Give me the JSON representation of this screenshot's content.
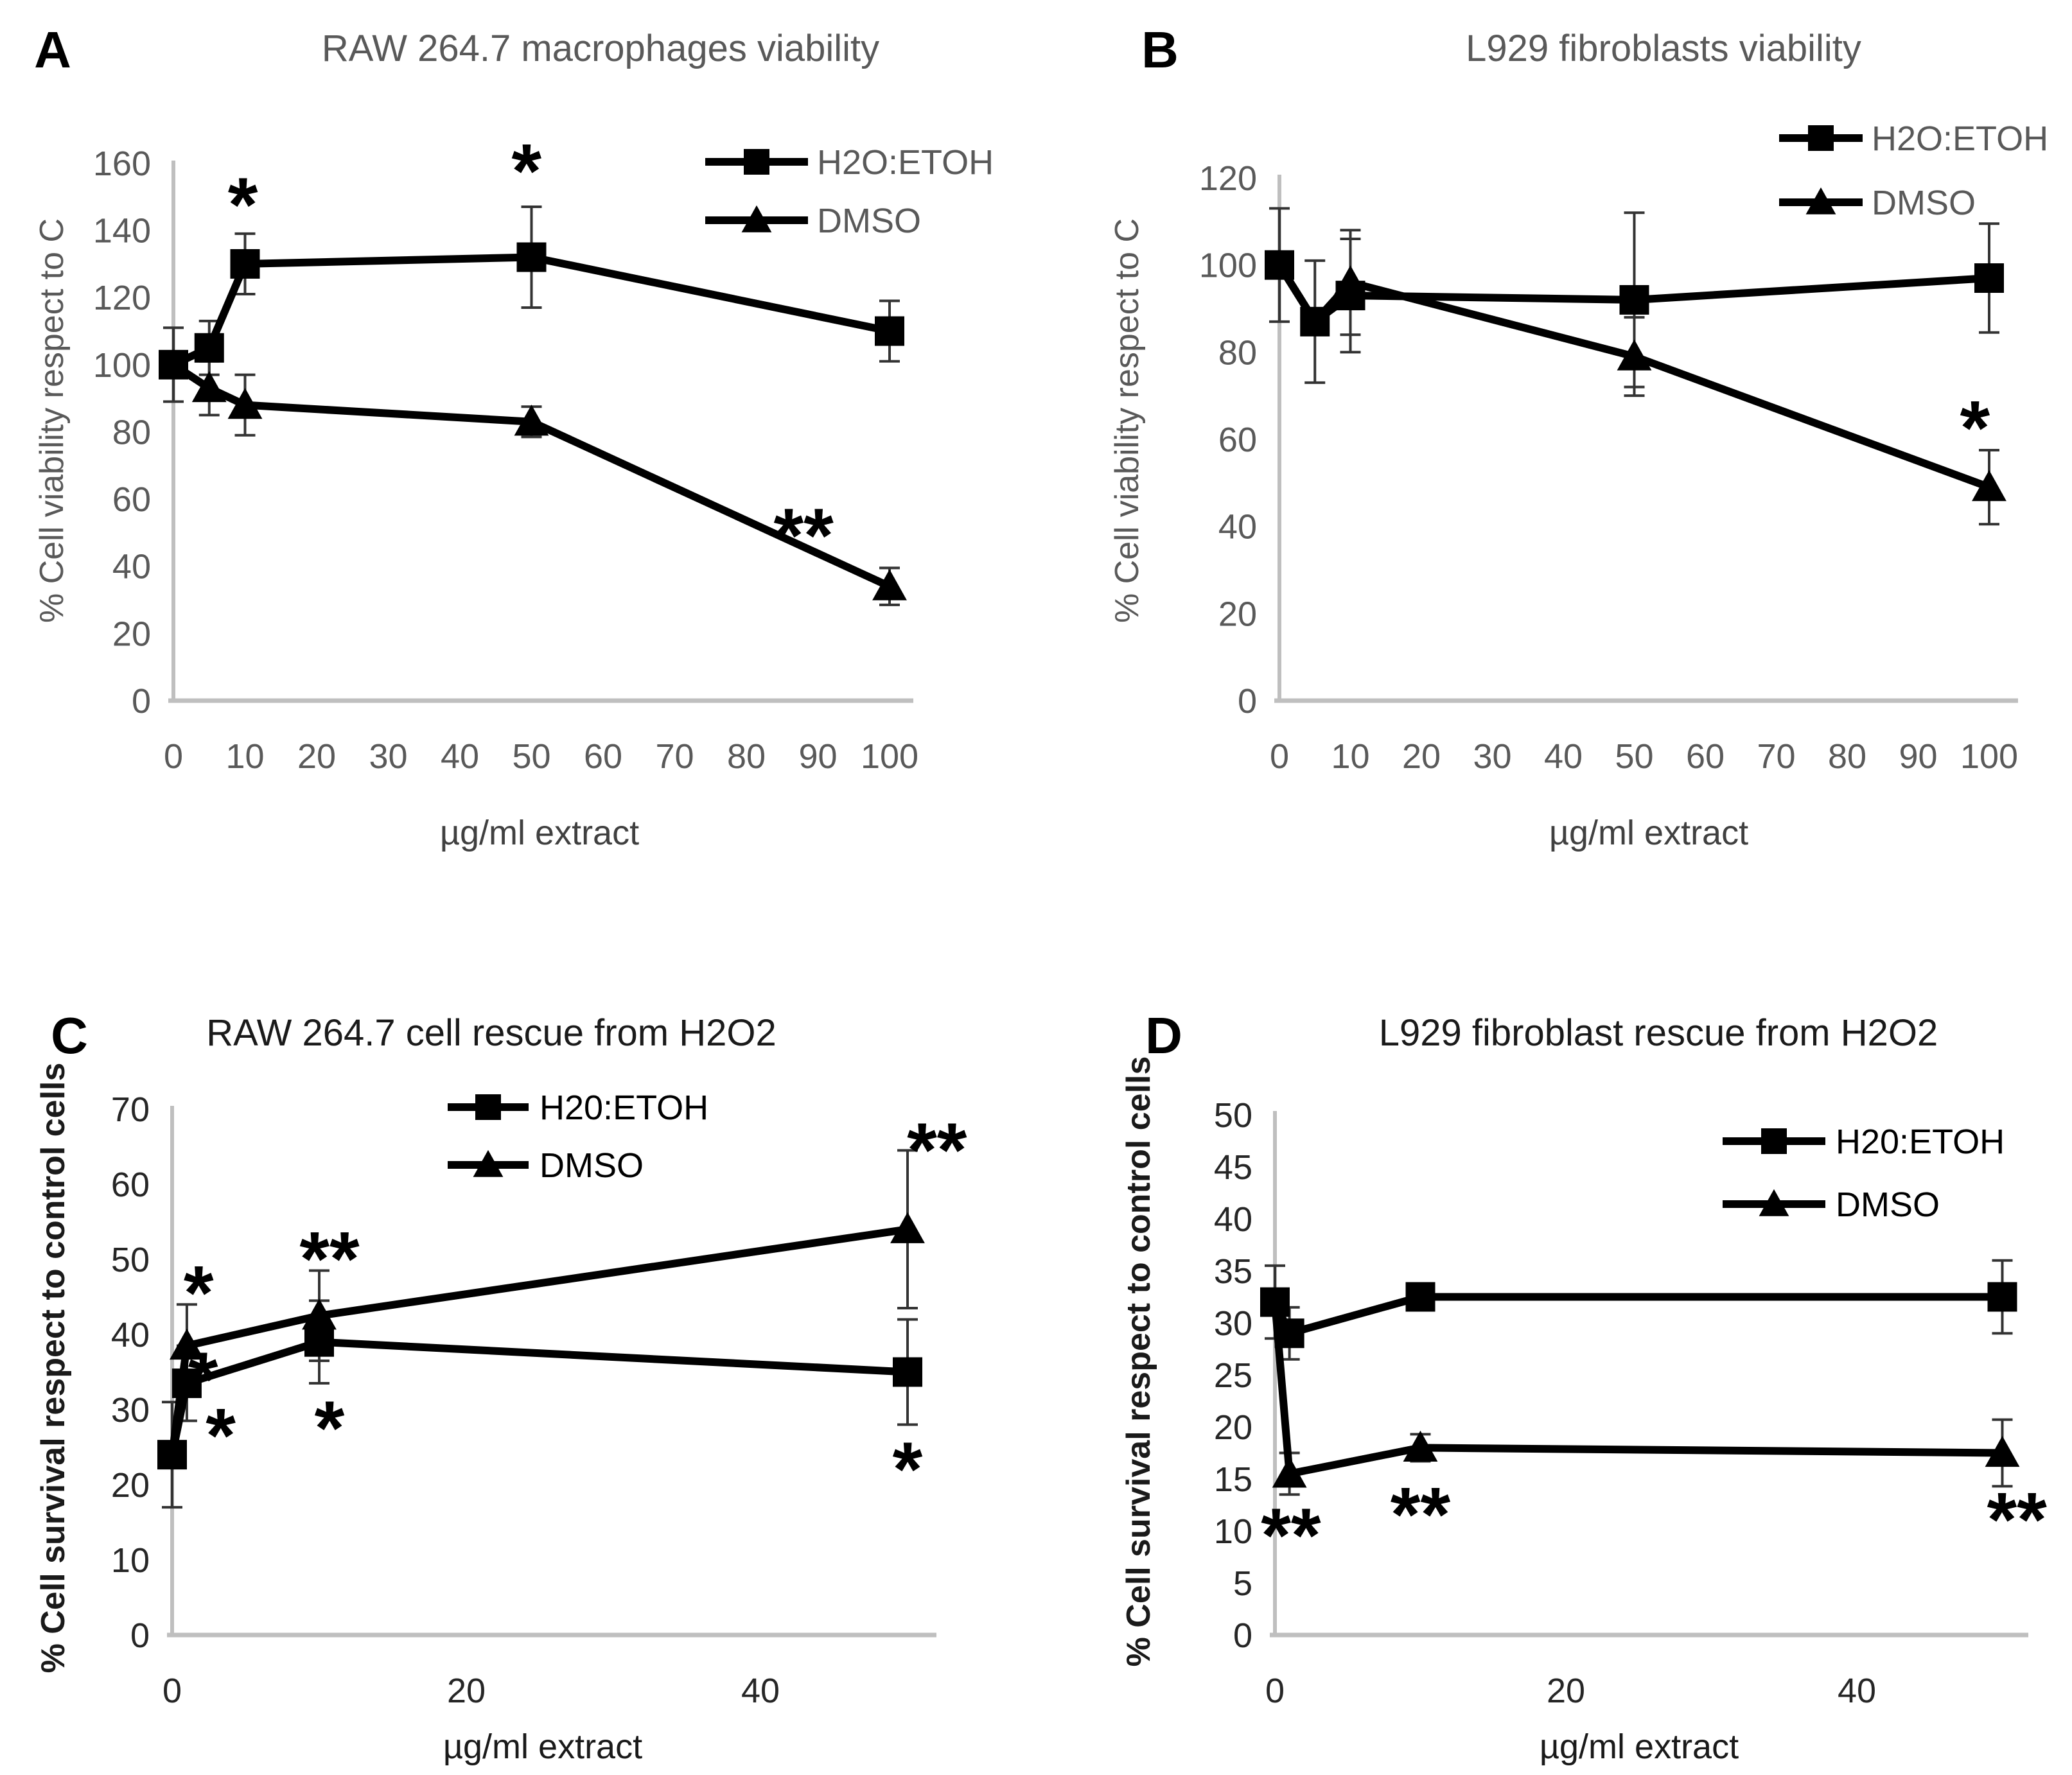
{
  "figure": {
    "background": "#ffffff",
    "panel_letters": [
      "A",
      "B",
      "C",
      "D"
    ]
  },
  "chart_data": [
    {
      "type": "line",
      "panel_letter": "A",
      "title": "RAW 264.7 macrophages viability",
      "xlabel": "µg/ml extract",
      "ylabel": "% Cell viability respect to C",
      "xlim": [
        0,
        102
      ],
      "ylim": [
        0,
        160
      ],
      "xticks": [
        0,
        10,
        20,
        30,
        40,
        50,
        60,
        70,
        80,
        90,
        100
      ],
      "yticks": [
        0,
        20,
        40,
        60,
        80,
        100,
        120,
        140,
        160
      ],
      "grid": false,
      "legend_position": "top-right-inside",
      "colors": {
        "title": "#595959",
        "tick": "#595959",
        "axis": "#bfbfbf",
        "series": "#000000",
        "legend_text": "#595959",
        "xlabel": "#404040",
        "ylabel": "#595959",
        "error_bar": "#333333"
      },
      "series": [
        {
          "name": "H2O:ETOH",
          "marker": "square",
          "x": [
            0,
            5,
            10,
            50,
            100
          ],
          "y": [
            100,
            105,
            130,
            132,
            110
          ],
          "err": [
            11,
            8,
            9,
            15,
            9
          ],
          "skip_markers": []
        },
        {
          "name": "DMSO",
          "marker": "triangle",
          "x": [
            0,
            5,
            10,
            50,
            100
          ],
          "y": [
            100,
            93,
            88,
            83,
            34
          ],
          "err": [
            11,
            8,
            9,
            4.5,
            5.5
          ],
          "skip_markers": [
            0
          ]
        }
      ],
      "annotations": [
        {
          "x": 9.7,
          "y": 152,
          "text": "*"
        },
        {
          "x": 49.3,
          "y": 162,
          "text": "*"
        },
        {
          "x": 88,
          "y": 53.5,
          "text": "**"
        }
      ]
    },
    {
      "type": "line",
      "panel_letter": "B",
      "title": "L929 fibroblasts viability",
      "xlabel": "µg/ml extract",
      "ylabel": "% Cell viability respect to C",
      "xlim": [
        0,
        102
      ],
      "ylim": [
        0,
        120
      ],
      "xticks": [
        0,
        10,
        20,
        30,
        40,
        50,
        60,
        70,
        80,
        90,
        100
      ],
      "yticks": [
        0,
        20,
        40,
        60,
        80,
        100,
        120
      ],
      "grid": false,
      "legend_position": "top-right-inside",
      "colors": {
        "title": "#595959",
        "tick": "#595959",
        "axis": "#bfbfbf",
        "series": "#000000",
        "legend_text": "#595959",
        "xlabel": "#404040",
        "ylabel": "#595959",
        "error_bar": "#333333"
      },
      "series": [
        {
          "name": "H2O:ETOH",
          "marker": "square",
          "x": [
            0,
            5,
            10,
            50,
            100
          ],
          "y": [
            100,
            87,
            93,
            92,
            97
          ],
          "err": [
            13,
            14,
            13,
            20,
            12.5
          ],
          "skip_markers": []
        },
        {
          "name": "DMSO",
          "marker": "triangle",
          "x": [
            0,
            5,
            10,
            50,
            100
          ],
          "y": [
            100,
            87,
            96,
            79,
            49
          ],
          "err": [
            13,
            14,
            12,
            9,
            8.5
          ],
          "skip_markers": [
            0,
            1
          ]
        }
      ],
      "annotations": [
        {
          "x": 98,
          "y": 66,
          "text": "*"
        }
      ]
    },
    {
      "type": "line",
      "panel_letter": "C",
      "title": "RAW 264.7 cell rescue from H2O2",
      "xlabel": "µg/ml extract",
      "ylabel": "% Cell survival respect to control cells",
      "xlim": [
        0,
        52
      ],
      "ylim": [
        0,
        70
      ],
      "xticks": [
        0,
        20,
        40
      ],
      "yticks": [
        0,
        10,
        20,
        30,
        40,
        50,
        60,
        70
      ],
      "grid": false,
      "legend_position": "top-center-inside",
      "colors": {
        "title": "#1a1a1a",
        "tick": "#262626",
        "axis": "#bfbfbf",
        "series": "#000000",
        "legend_text": "#000000",
        "xlabel": "#1a1a1a",
        "ylabel": "#1a1a1a",
        "error_bar": "#333333"
      },
      "series": [
        {
          "name": "H20:ETOH",
          "marker": "square",
          "x": [
            0,
            1,
            10,
            50
          ],
          "y": [
            24,
            33.5,
            39,
            35
          ],
          "err": [
            7,
            5,
            5.5,
            7
          ],
          "skip_markers": []
        },
        {
          "name": "DMSO",
          "marker": "triangle",
          "x": [
            0,
            1,
            10,
            50
          ],
          "y": [
            24,
            38.5,
            42.5,
            54
          ],
          "err": [
            0,
            5.5,
            6,
            10.5
          ],
          "skip_markers": [
            0
          ]
        }
      ],
      "annotations": [
        {
          "x": 1.8,
          "y": 47.5,
          "text": "*"
        },
        {
          "x": 2.1,
          "y": 36,
          "text": "*"
        },
        {
          "x": 3.3,
          "y": 28.5,
          "text": "*"
        },
        {
          "x": 10.7,
          "y": 52,
          "text": "**"
        },
        {
          "x": 10.7,
          "y": 29.5,
          "text": "*"
        },
        {
          "x": 52,
          "y": 66.5,
          "text": "**"
        },
        {
          "x": 50,
          "y": 24,
          "text": "*"
        }
      ]
    },
    {
      "type": "line",
      "panel_letter": "D",
      "title": "L929 fibroblast rescue from H2O2",
      "xlabel": "µg/ml extract",
      "ylabel": "% Cell survival respect to control cells",
      "xlim": [
        0,
        52
      ],
      "ylim": [
        0,
        50
      ],
      "xticks": [
        0,
        20,
        40
      ],
      "yticks": [
        0,
        5,
        10,
        15,
        20,
        25,
        30,
        35,
        40,
        45,
        50
      ],
      "grid": false,
      "legend_position": "right-inside",
      "colors": {
        "title": "#1a1a1a",
        "tick": "#262626",
        "axis": "#bfbfbf",
        "series": "#000000",
        "legend_text": "#000000",
        "xlabel": "#1a1a1a",
        "ylabel": "#1a1a1a",
        "error_bar": "#333333"
      },
      "series": [
        {
          "name": "H20:ETOH",
          "marker": "square",
          "x": [
            0,
            1,
            10,
            50
          ],
          "y": [
            32,
            29,
            32.5,
            32.5
          ],
          "err": [
            3.5,
            2.5,
            1.2,
            3.5
          ],
          "skip_markers": []
        },
        {
          "name": "DMSO",
          "marker": "triangle",
          "x": [
            0,
            1,
            10,
            50
          ],
          "y": [
            32,
            15.5,
            18,
            17.5
          ],
          "err": [
            0,
            2,
            1.3,
            3.2
          ],
          "skip_markers": [
            0
          ]
        }
      ],
      "annotations": [
        {
          "x": 1.1,
          "y": 11,
          "text": "**"
        },
        {
          "x": 10,
          "y": 13,
          "text": "**"
        },
        {
          "x": 51,
          "y": 12.5,
          "text": "**"
        }
      ]
    }
  ]
}
